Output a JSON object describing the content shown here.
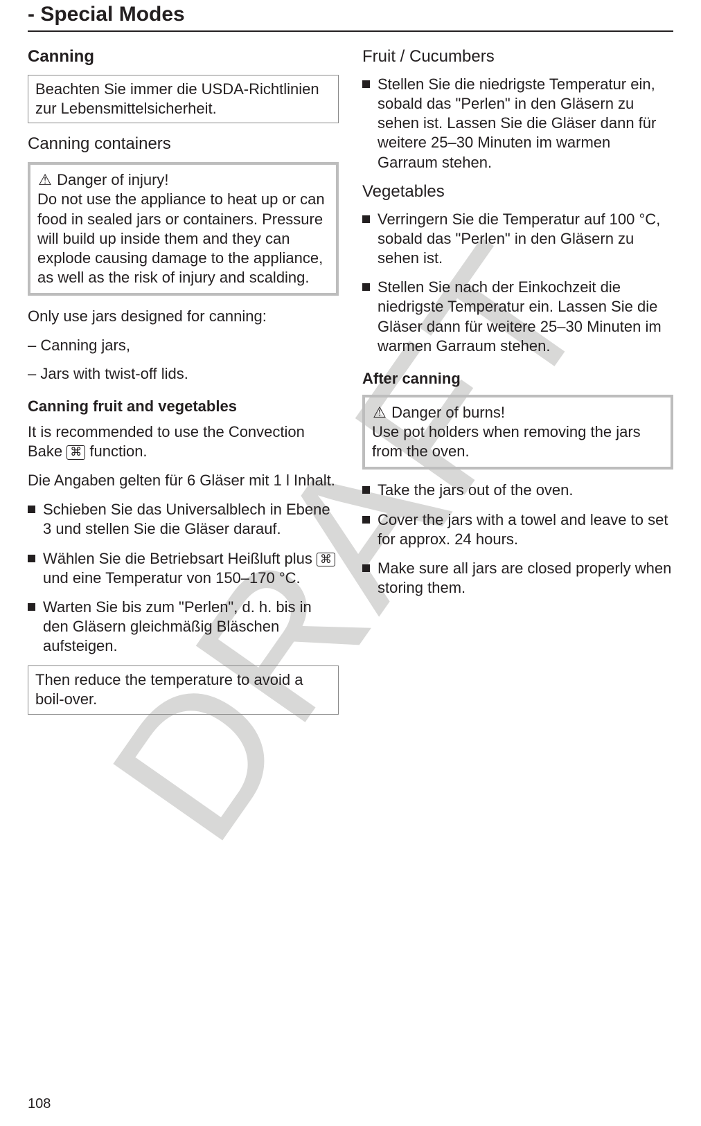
{
  "page": {
    "title": "- Special Modes",
    "number": "108",
    "watermark": "DRAFT"
  },
  "left": {
    "h_canning": "Canning",
    "callout_usda": "Beachten Sie immer die USDA-Richtlinien zur Lebensmittelsicherheit.",
    "h_containers": "Canning containers",
    "warn_injury_title": " Danger of injury!",
    "warn_injury_body": "Do not use the appliance to heat up or can food in sealed jars or containers. Pressure will build up inside them and they can explode causing damage to the appliance, as well as the risk of injury and scalding.",
    "only_use": "Only use jars designed for canning:",
    "dash_items": [
      "Canning jars,",
      "Jars with twist-off lids."
    ],
    "h_fruitveg": "Canning fruit and vegetables",
    "rec_pre": "It is recommended to use the Convection Bake ",
    "rec_post": " function.",
    "angaben": "Die Angaben gelten für 6 Gläser mit 1 l Inhalt.",
    "steps": [
      "Schieben Sie das Universalblech in Ebene 3 und stellen Sie die Gläser darauf.",
      "Wählen Sie die Betriebsart Heißluft plus __ICON__ und eine Temperatur von 150–170 °C.",
      "Warten Sie bis zum \"Perlen\", d. h. bis in den Gläsern gleichmäßig Bläschen aufsteigen."
    ],
    "callout_reduce": "Then reduce the temperature to avoid a boil-over."
  },
  "right": {
    "h_fruit": "Fruit / Cucumbers",
    "fruit_step": "Stellen Sie die niedrigste Temperatur ein, sobald das \"Perlen\" in den Gläsern zu sehen ist. Lassen Sie die Gläser dann für weitere 25–30 Minuten im warmen Garraum stehen.",
    "h_veg": "Vegetables",
    "veg_steps": [
      "Verringern Sie die Temperatur auf 100 °C, sobald das \"Perlen\" in den Gläsern zu sehen ist.",
      "Stellen Sie nach der Einkochzeit die niedrigste Temperatur ein. Lassen Sie die Gläser dann für weitere 25–30 Minuten im warmen Garraum stehen."
    ],
    "h_after": "After canning",
    "warn_burns_title": " Danger of burns!",
    "warn_burns_body": "Use pot holders when removing the jars from the oven.",
    "after_steps": [
      "Take the jars out of the oven.",
      "Cover the jars with a towel and leave to set for approx. 24 hours.",
      "Make sure all jars are closed properly when storing them."
    ]
  },
  "icons": {
    "fan_glyph": "⌘"
  }
}
